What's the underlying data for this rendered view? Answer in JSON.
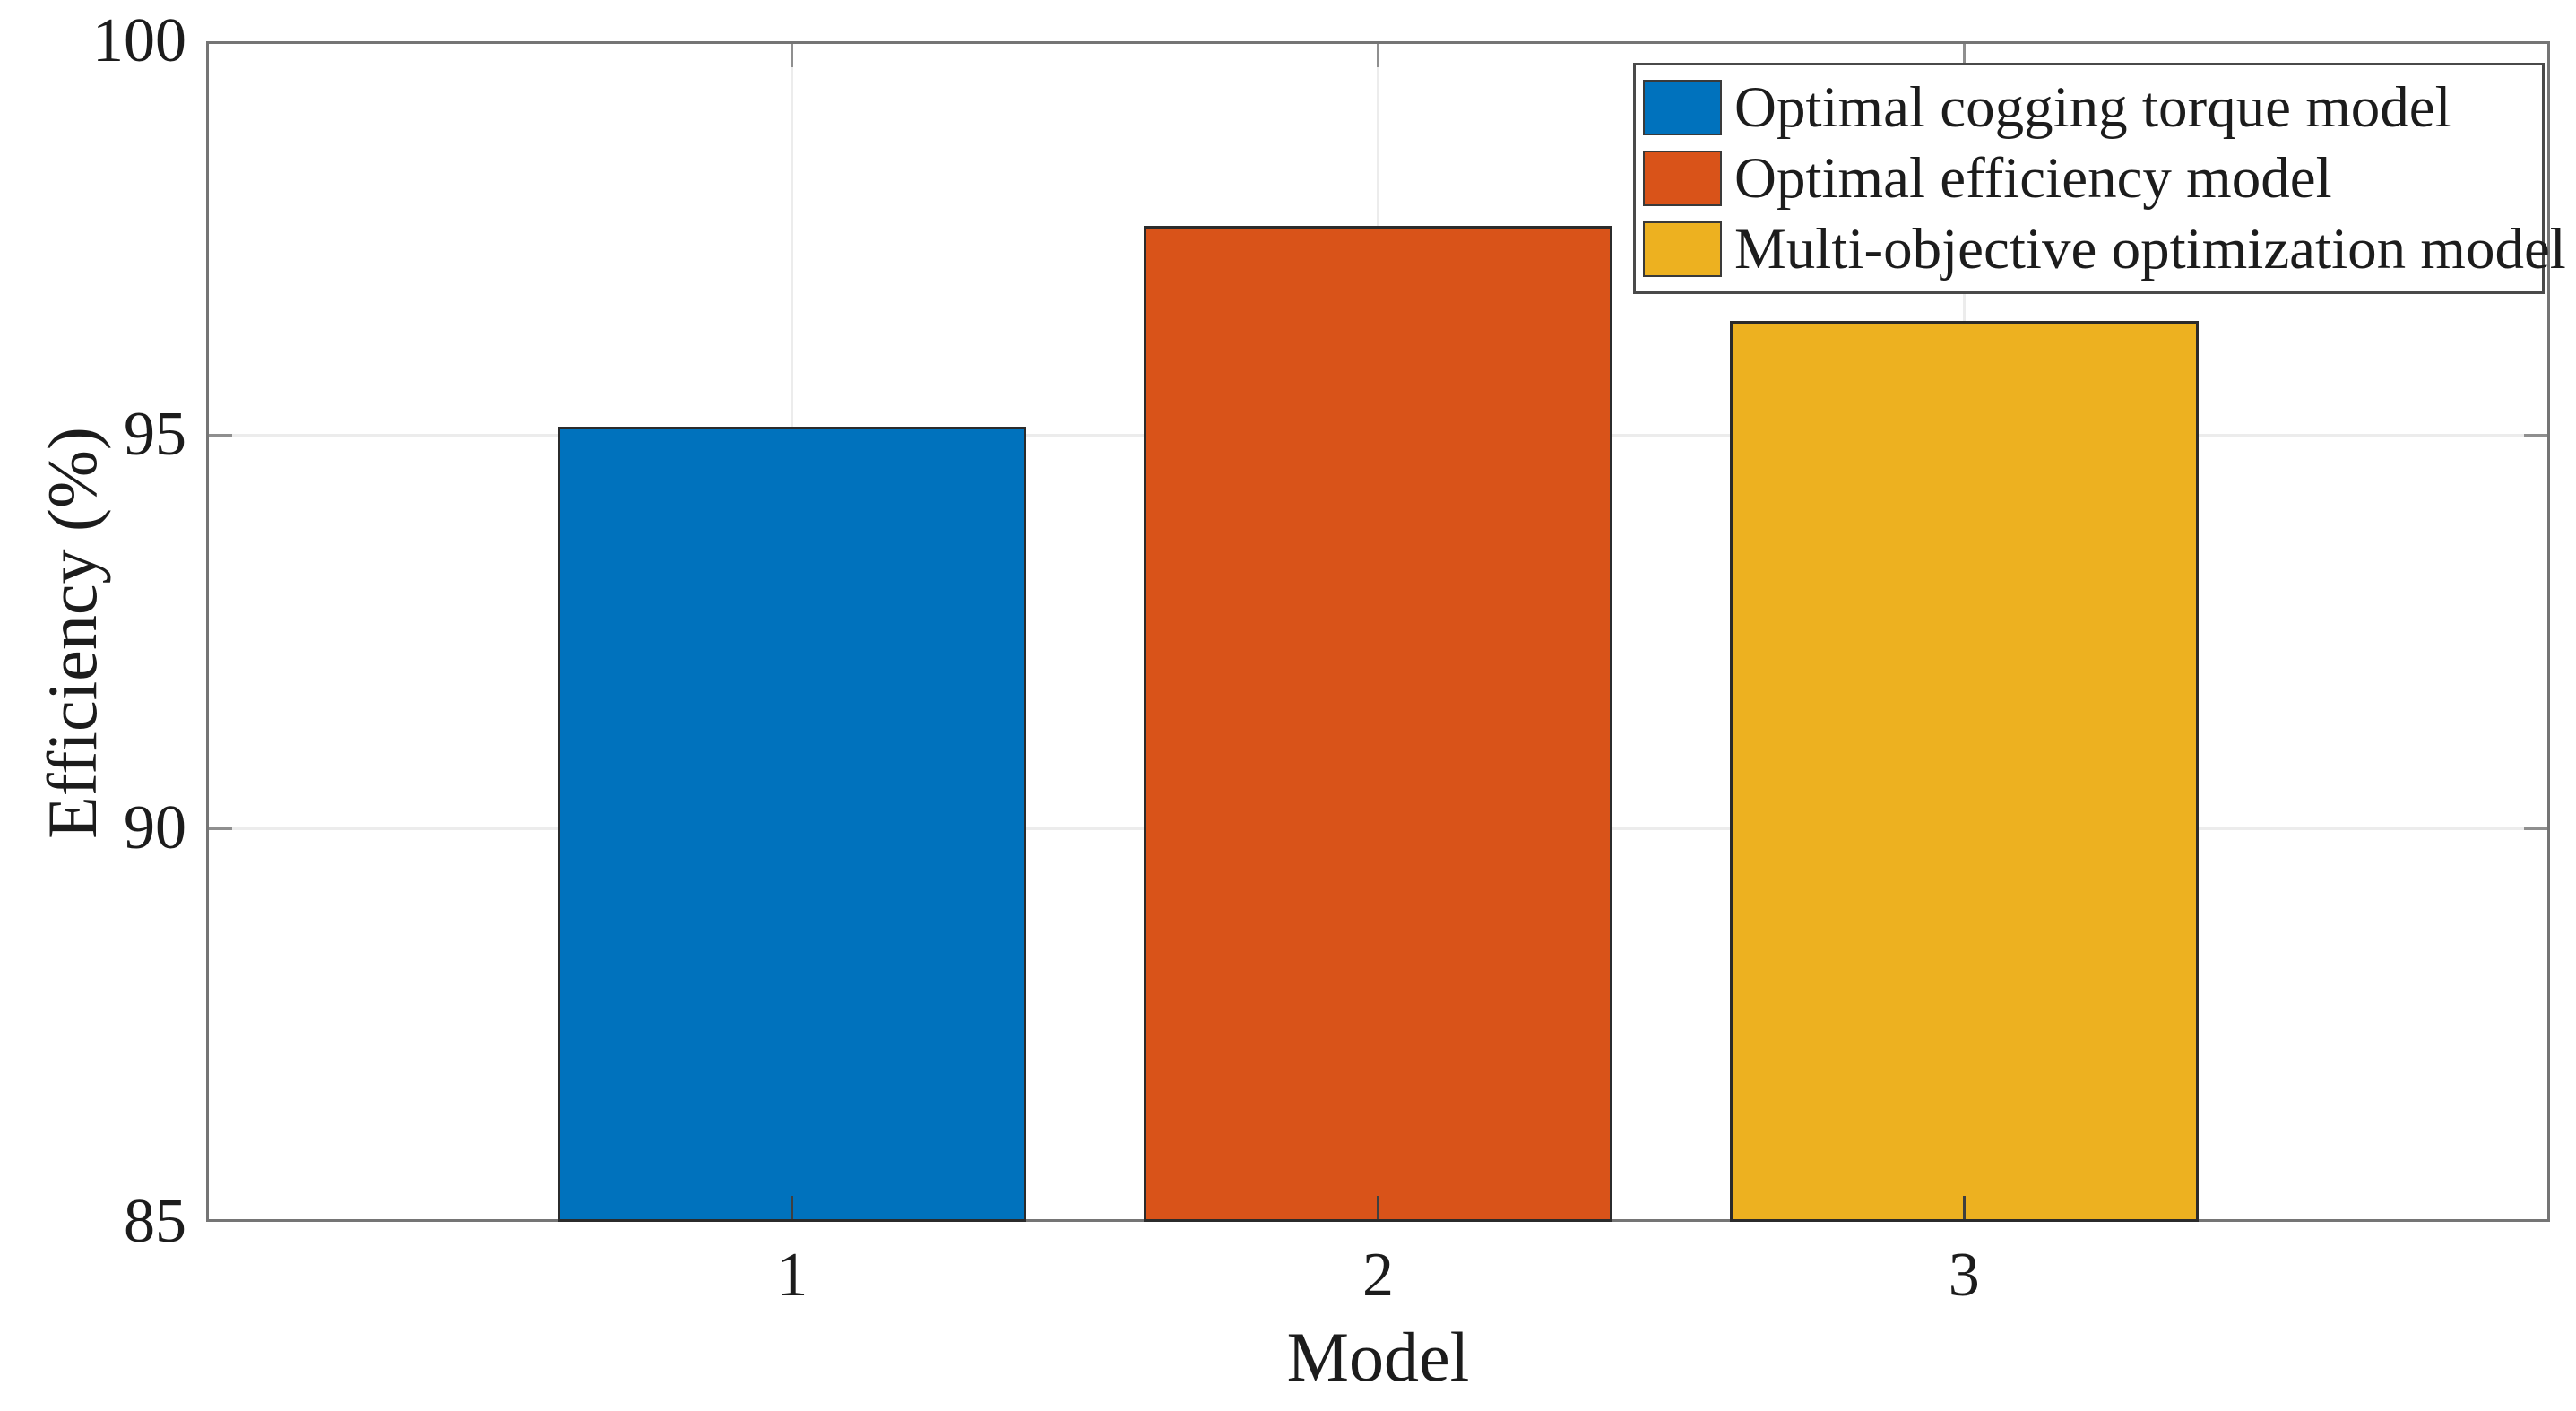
{
  "figure": {
    "background": "#ffffff"
  },
  "chart_data": {
    "type": "bar",
    "title": "",
    "xlabel": "Model",
    "ylabel": "Efficiency (%)",
    "categories": [
      "1",
      "2",
      "3"
    ],
    "values": [
      95.1,
      97.65,
      96.45
    ],
    "series": [
      {
        "name": "Optimal cogging torque model",
        "category": "1",
        "value": 95.1,
        "color": "#0072BD"
      },
      {
        "name": "Optimal efficiency model",
        "category": "2",
        "value": 97.65,
        "color": "#D95319"
      },
      {
        "name": "Multi-objective optimization model",
        "category": "3",
        "value": 96.45,
        "color": "#EDB120"
      }
    ],
    "legend": [
      "Optimal cogging torque model",
      "Optimal efficiency model",
      "Multi-objective optimization model"
    ],
    "legend_position": "top-right",
    "ylim": [
      85,
      100
    ],
    "yticks": [
      85,
      90,
      95,
      100
    ],
    "xlim": [
      0,
      4
    ],
    "xtick_positions": [
      1,
      2,
      3
    ],
    "bar_width_ratio": 0.8,
    "grid": true
  }
}
